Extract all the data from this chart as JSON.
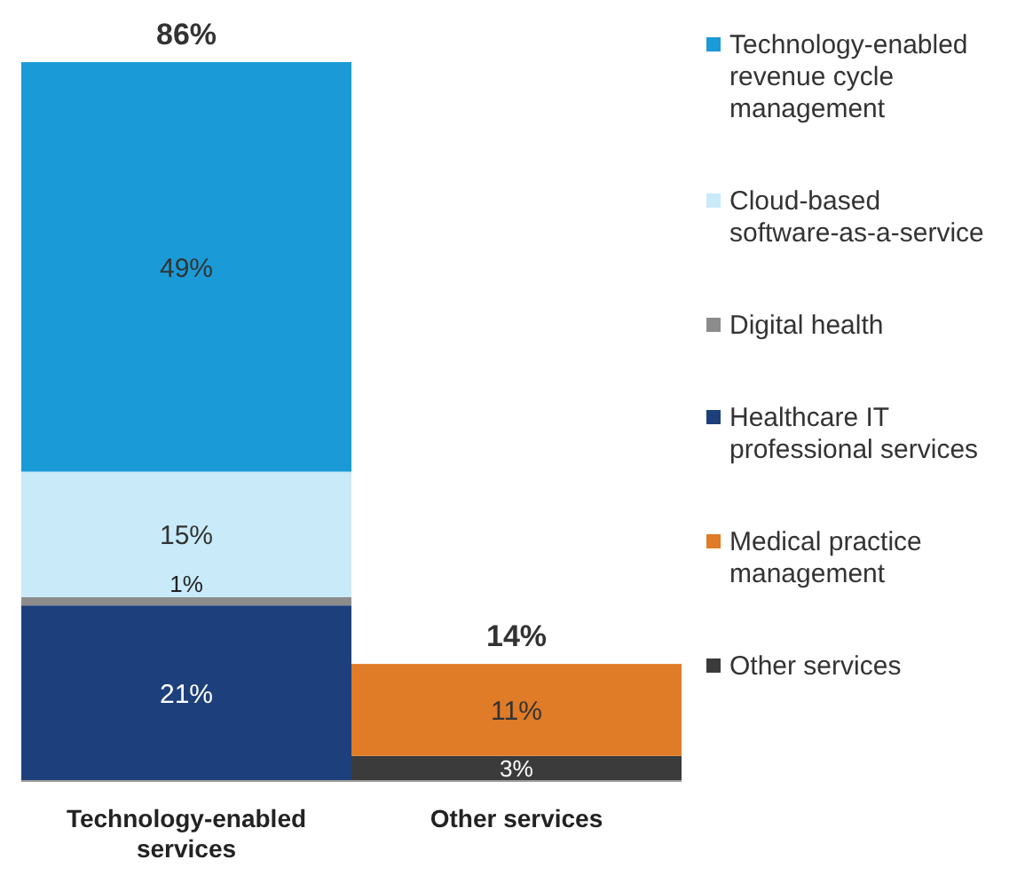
{
  "chart_data": {
    "type": "bar",
    "stacked": true,
    "categories": [
      "Technology-enabled services",
      "Other services"
    ],
    "series": [
      {
        "name": "Other services",
        "color": "#3b3b3b",
        "values": [
          null,
          3
        ],
        "value_labels": [
          null,
          "3%"
        ]
      },
      {
        "name": "Medical practice management",
        "color": "#e07b27",
        "values": [
          null,
          11
        ],
        "value_labels": [
          null,
          "11%"
        ]
      },
      {
        "name": "Healthcare IT professional services",
        "color": "#1d3f7b",
        "values": [
          21,
          null
        ],
        "value_labels": [
          "21%",
          null
        ]
      },
      {
        "name": "Digital health",
        "color": "#8c8c8c",
        "values": [
          1,
          null
        ],
        "value_labels": [
          "1%",
          null
        ]
      },
      {
        "name": "Cloud-based software-as-a-service",
        "color": "#c8eaf9",
        "values": [
          15,
          null
        ],
        "value_labels": [
          "15%",
          null
        ]
      },
      {
        "name": "Technology-enabled revenue cycle management",
        "color": "#1a9bd7",
        "values": [
          49,
          null
        ],
        "value_labels": [
          "49%",
          null
        ]
      }
    ],
    "totals": [
      "86%",
      "14%"
    ],
    "legend": "right"
  }
}
